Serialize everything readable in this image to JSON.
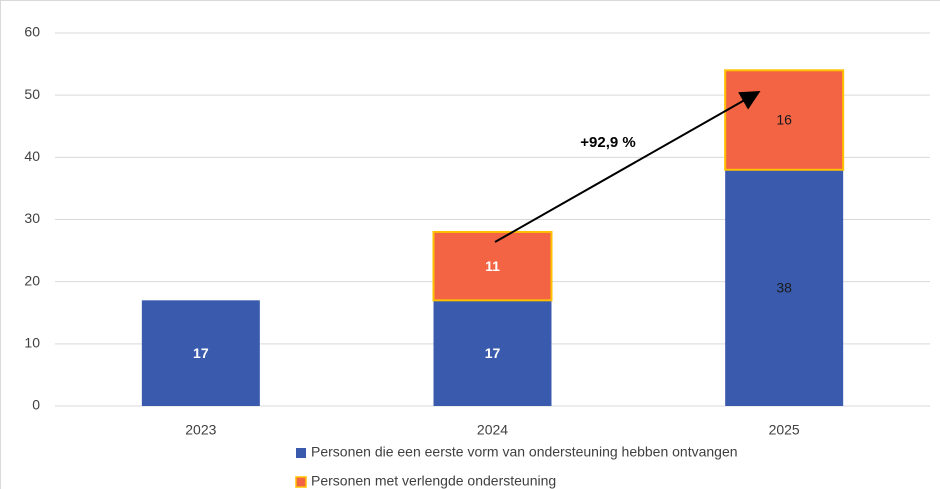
{
  "chart_data": {
    "type": "stacked_bar",
    "categories": [
      "2023",
      "2024",
      "2025"
    ],
    "series": [
      {
        "name": "Personen die een eerste vorm van ondersteuning hebben ontvangen",
        "color": "#3a5bad",
        "values": [
          17,
          17,
          38
        ]
      },
      {
        "name": "Personen met verlengde ondersteuning",
        "color": "#f26444",
        "edge_color": "#ffc000",
        "values": [
          null,
          11,
          16
        ]
      }
    ],
    "ylim": [
      0,
      60
    ],
    "yticks": [
      0,
      10,
      20,
      30,
      40,
      50,
      60
    ],
    "grid": true,
    "legend": "bottom",
    "annotation": "+92,9 %"
  }
}
